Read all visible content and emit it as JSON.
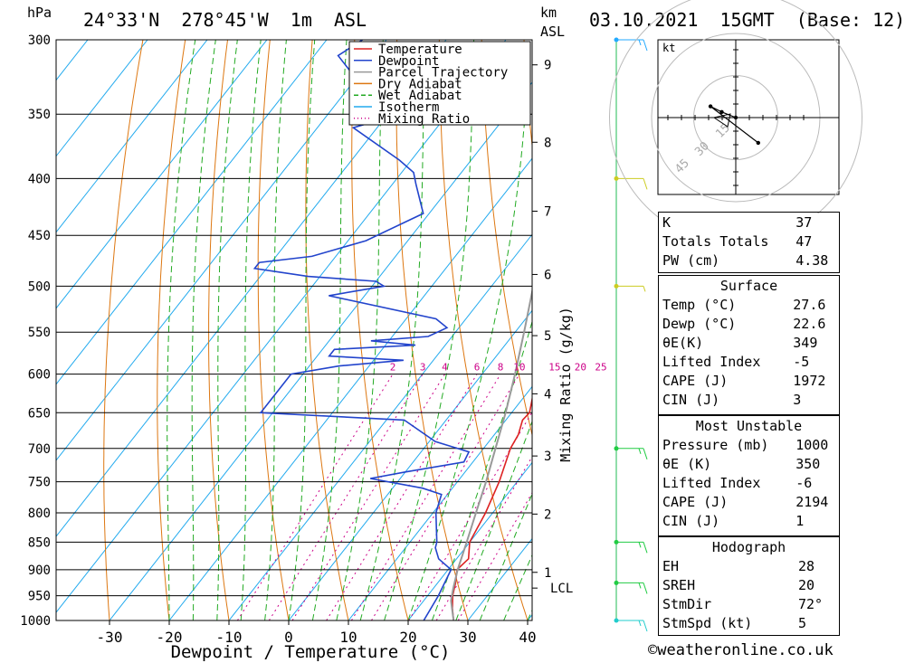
{
  "header": {
    "units_left": "hPa",
    "location": "24°33'N  278°45'W  1m  ASL",
    "units_km": "km",
    "units_asl": "ASL",
    "datetime": "03.10.2021  15GMT  (Base: 12)"
  },
  "chart_data": {
    "type": "line",
    "title": "24°33'N  278°45'W  1m  ASL",
    "xlabel": "Dewpoint / Temperature (°C)",
    "ylabel": "hPa",
    "xlim": [
      -40,
      40
    ],
    "ylim": [
      1000,
      300
    ],
    "y_scale": "log",
    "x_ticks": [
      "-30",
      "-20",
      "-10",
      "0",
      "10",
      "20",
      "30",
      "40"
    ],
    "pressure_ticks": [
      300,
      350,
      400,
      450,
      500,
      550,
      600,
      650,
      700,
      750,
      800,
      850,
      900,
      950,
      1000
    ],
    "height_axis_label": "km ASL",
    "height_ticks": [
      {
        "label": "9",
        "pressure": 316
      },
      {
        "label": "8",
        "pressure": 371
      },
      {
        "label": "7",
        "pressure": 428
      },
      {
        "label": "6",
        "pressure": 488
      },
      {
        "label": "5",
        "pressure": 554
      },
      {
        "label": "4",
        "pressure": 625
      },
      {
        "label": "3",
        "pressure": 711
      },
      {
        "label": "2",
        "pressure": 802
      },
      {
        "label": "1",
        "pressure": 905
      },
      {
        "label": "LCL",
        "pressure": 935
      }
    ],
    "mixing_ratio_label": "Mixing Ratio (g/kg)",
    "mixing_ratio_ticks": [
      "2",
      "3",
      "4",
      "6",
      "8",
      "10",
      "15",
      "20",
      "25"
    ],
    "legend": [
      "Temperature",
      "Dewpoint",
      "Parcel Trajectory",
      "Dry Adiabat",
      "Wet Adiabat",
      "Isotherm",
      "Mixing Ratio"
    ],
    "legend_placement": "top-right",
    "series": [
      {
        "name": "Temperature",
        "color": "#dd2222",
        "points": [
          [
            1000,
            27.6
          ],
          [
            975,
            25.8
          ],
          [
            950,
            24.2
          ],
          [
            925,
            23.0
          ],
          [
            900,
            21.5
          ],
          [
            880,
            22.0
          ],
          [
            850,
            20.0
          ],
          [
            800,
            18.8
          ],
          [
            750,
            17.0
          ],
          [
            700,
            14.5
          ],
          [
            680,
            14.0
          ],
          [
            660,
            12.8
          ],
          [
            650,
            13.0
          ],
          [
            600,
            9.2
          ],
          [
            550,
            4.5
          ],
          [
            500,
            -1.0
          ],
          [
            470,
            -4.0
          ],
          [
            450,
            -6.0
          ],
          [
            400,
            -12.0
          ],
          [
            380,
            -15.0
          ],
          [
            350,
            -21.0
          ],
          [
            330,
            -25.5
          ],
          [
            320,
            -27.8
          ],
          [
            310,
            -30.5
          ],
          [
            300,
            -33.5
          ]
        ]
      },
      {
        "name": "Dewpoint",
        "color": "#2244cc",
        "points": [
          [
            1000,
            22.6
          ],
          [
            950,
            21.8
          ],
          [
            900,
            20.5
          ],
          [
            880,
            17.0
          ],
          [
            860,
            15.0
          ],
          [
            850,
            14.5
          ],
          [
            800,
            10.5
          ],
          [
            770,
            9.0
          ],
          [
            760,
            5.0
          ],
          [
            745,
            -5.0
          ],
          [
            735,
            0.0
          ],
          [
            720,
            8.5
          ],
          [
            705,
            8.0
          ],
          [
            690,
            1.0
          ],
          [
            660,
            -7.0
          ],
          [
            650,
            -32.0
          ],
          [
            600,
            -32.0
          ],
          [
            590,
            -25.0
          ],
          [
            583,
            -15.0
          ],
          [
            578,
            -28.0
          ],
          [
            570,
            -28.0
          ],
          [
            565,
            -15.0
          ],
          [
            560,
            -23.0
          ],
          [
            555,
            -14.0
          ],
          [
            545,
            -12.0
          ],
          [
            535,
            -15.0
          ],
          [
            510,
            -36.0
          ],
          [
            500,
            -28.0
          ],
          [
            495,
            -30.0
          ],
          [
            490,
            -42.0
          ],
          [
            482,
            -52.0
          ],
          [
            476,
            -52.0
          ],
          [
            470,
            -44.0
          ],
          [
            455,
            -37.0
          ],
          [
            430,
            -31.0
          ],
          [
            405,
            -36.0
          ],
          [
            395,
            -38.0
          ],
          [
            385,
            -42.0
          ],
          [
            360,
            -54.0
          ],
          [
            355,
            -51.0
          ],
          [
            340,
            -53.0
          ],
          [
            330,
            -56.0
          ],
          [
            320,
            -62.0
          ],
          [
            310,
            -66.0
          ],
          [
            300,
            -64.0
          ]
        ]
      },
      {
        "name": "Parcel Trajectory",
        "color": "#999999",
        "points": [
          [
            1000,
            27.6
          ],
          [
            960,
            24.6
          ],
          [
            935,
            23.3
          ],
          [
            900,
            21.6
          ],
          [
            850,
            19.5
          ],
          [
            800,
            17.2
          ],
          [
            750,
            14.8
          ],
          [
            700,
            12.0
          ],
          [
            650,
            9.0
          ],
          [
            600,
            5.5
          ],
          [
            550,
            1.5
          ],
          [
            500,
            -3.0
          ],
          [
            450,
            -8.5
          ],
          [
            400,
            -15.5
          ],
          [
            370,
            -20.5
          ]
        ]
      }
    ],
    "wind_barbs": [
      {
        "pressure": 300,
        "color": "#22aaff",
        "speed_kt": 15
      },
      {
        "pressure": 400,
        "color": "#cccc22",
        "speed_kt": 10
      },
      {
        "pressure": 500,
        "color": "#cccc22",
        "speed_kt": 5
      },
      {
        "pressure": 700,
        "color": "#22cc44",
        "speed_kt": 15
      },
      {
        "pressure": 850,
        "color": "#22cc44",
        "speed_kt": 15
      },
      {
        "pressure": 925,
        "color": "#22cc44",
        "speed_kt": 15
      },
      {
        "pressure": 1000,
        "color": "#22cccc",
        "speed_kt": 15
      }
    ],
    "hodograph": {
      "unit_label": "kt",
      "ring_labels": [
        "15",
        "30",
        "45"
      ],
      "points": [
        [
          0,
          0
        ],
        [
          -5,
          2
        ],
        [
          -9,
          4
        ],
        [
          8,
          -9
        ]
      ]
    }
  },
  "indices": {
    "basic": [
      {
        "label": "K",
        "value": "37"
      },
      {
        "label": "Totals Totals",
        "value": "47"
      },
      {
        "label": "PW (cm)",
        "value": "4.38"
      }
    ],
    "surface_title": "Surface",
    "surface": [
      {
        "label": "Temp (°C)",
        "value": "27.6"
      },
      {
        "label": "Dewp (°C)",
        "value": "22.6"
      },
      {
        "label": "θE(K)",
        "value": "349"
      },
      {
        "label": "Lifted Index",
        "value": "-5"
      },
      {
        "label": "CAPE (J)",
        "value": "1972"
      },
      {
        "label": "CIN (J)",
        "value": "3"
      }
    ],
    "mu_title": "Most Unstable",
    "mu": [
      {
        "label": "Pressure (mb)",
        "value": "1000"
      },
      {
        "label": "θE (K)",
        "value": "350"
      },
      {
        "label": "Lifted Index",
        "value": "-6"
      },
      {
        "label": "CAPE (J)",
        "value": "2194"
      },
      {
        "label": "CIN (J)",
        "value": "1"
      }
    ],
    "hodo_title": "Hodograph",
    "hodo": [
      {
        "label": "EH",
        "value": "28"
      },
      {
        "label": "SREH",
        "value": "20"
      },
      {
        "label": "StmDir",
        "value": "72°"
      },
      {
        "label": "StmSpd (kt)",
        "value": "5"
      }
    ]
  },
  "footer": {
    "copyright": "©weatheronline.co.uk"
  },
  "colors": {
    "temperature": "#dd2222",
    "dewpoint": "#2244cc",
    "parcel": "#999999",
    "dry_adiabat": "#dd7711",
    "wet_adiabat": "#22aa22",
    "isotherm": "#22aaee",
    "mixing_ratio": "#cc0088"
  }
}
